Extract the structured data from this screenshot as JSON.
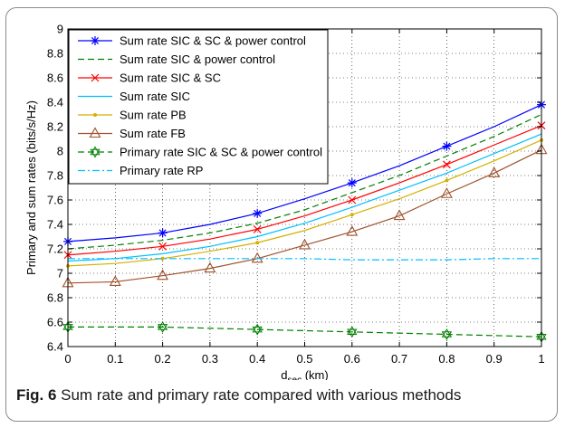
{
  "caption": {
    "number": "Fig. 6",
    "text": "Sum rate and primary rate compared with various methods"
  },
  "chart_data": {
    "type": "line",
    "title": "",
    "xlabel_main": "d",
    "xlabel_sub": "sec",
    "xlabel_unit": " (km)",
    "ylabel": "Primary and sum rates (bits/s/Hz)",
    "xlim": [
      0,
      1
    ],
    "ylim": [
      6.4,
      9
    ],
    "x_ticks": [
      "0",
      "0.1",
      "0.2",
      "0.3",
      "0.4",
      "0.5",
      "0.6",
      "0.7",
      "0.8",
      "0.9",
      "1"
    ],
    "y_ticks": [
      "6.4",
      "6.6",
      "6.8",
      "7",
      "7.2",
      "7.4",
      "7.6",
      "7.8",
      "8",
      "8.2",
      "8.4",
      "8.6",
      "8.8",
      "9"
    ],
    "grid": true,
    "legend_position": "top-left",
    "x": [
      0,
      0.1,
      0.2,
      0.3,
      0.4,
      0.5,
      0.6,
      0.7,
      0.8,
      0.9,
      1
    ],
    "series": [
      {
        "name": "Sum rate SIC & SC & power control",
        "color": "#0000ff",
        "dash": "solid",
        "marker": "star",
        "marker_every": 2,
        "values": [
          7.26,
          7.29,
          7.33,
          7.4,
          7.49,
          7.61,
          7.74,
          7.88,
          8.04,
          8.2,
          8.38
        ]
      },
      {
        "name": "Sum rate SIC & power control",
        "color": "#008000",
        "dash": "dashed",
        "marker": "none",
        "marker_every": 0,
        "values": [
          7.2,
          7.23,
          7.27,
          7.33,
          7.41,
          7.52,
          7.66,
          7.8,
          7.96,
          8.12,
          8.3
        ]
      },
      {
        "name": "Sum rate SIC & SC",
        "color": "#ff0000",
        "dash": "solid",
        "marker": "x",
        "marker_every": 2,
        "values": [
          7.15,
          7.18,
          7.22,
          7.28,
          7.36,
          7.47,
          7.6,
          7.74,
          7.89,
          8.05,
          8.21
        ]
      },
      {
        "name": "Sum rate SIC",
        "color": "#00bfff",
        "dash": "solid",
        "marker": "none",
        "marker_every": 0,
        "values": [
          7.1,
          7.12,
          7.16,
          7.22,
          7.3,
          7.41,
          7.54,
          7.68,
          7.82,
          7.98,
          8.14
        ]
      },
      {
        "name": "Sum rate PB",
        "color": "#d4b000",
        "dash": "solid",
        "marker": "dot",
        "marker_every": 2,
        "values": [
          7.06,
          7.08,
          7.12,
          7.18,
          7.25,
          7.35,
          7.48,
          7.61,
          7.76,
          7.92,
          8.09
        ]
      },
      {
        "name": "Sum rate FB",
        "color": "#a0522d",
        "dash": "solid",
        "marker": "triangle",
        "marker_every": 1,
        "values": [
          6.92,
          6.93,
          6.98,
          7.04,
          7.12,
          7.23,
          7.34,
          7.47,
          7.65,
          7.82,
          8.01
        ]
      },
      {
        "name": "Primary rate SIC & SC & power control",
        "color": "#008000",
        "dash": "dashed",
        "marker": "hexstar",
        "marker_every": 2,
        "values": [
          6.56,
          6.56,
          6.56,
          6.55,
          6.54,
          6.53,
          6.52,
          6.51,
          6.5,
          6.49,
          6.48
        ]
      },
      {
        "name": "Primary rate RP",
        "color": "#00bfff",
        "dash": "dashdot",
        "marker": "none",
        "marker_every": 0,
        "values": [
          7.12,
          7.12,
          7.12,
          7.12,
          7.12,
          7.12,
          7.11,
          7.11,
          7.11,
          7.12,
          7.12
        ]
      }
    ]
  }
}
